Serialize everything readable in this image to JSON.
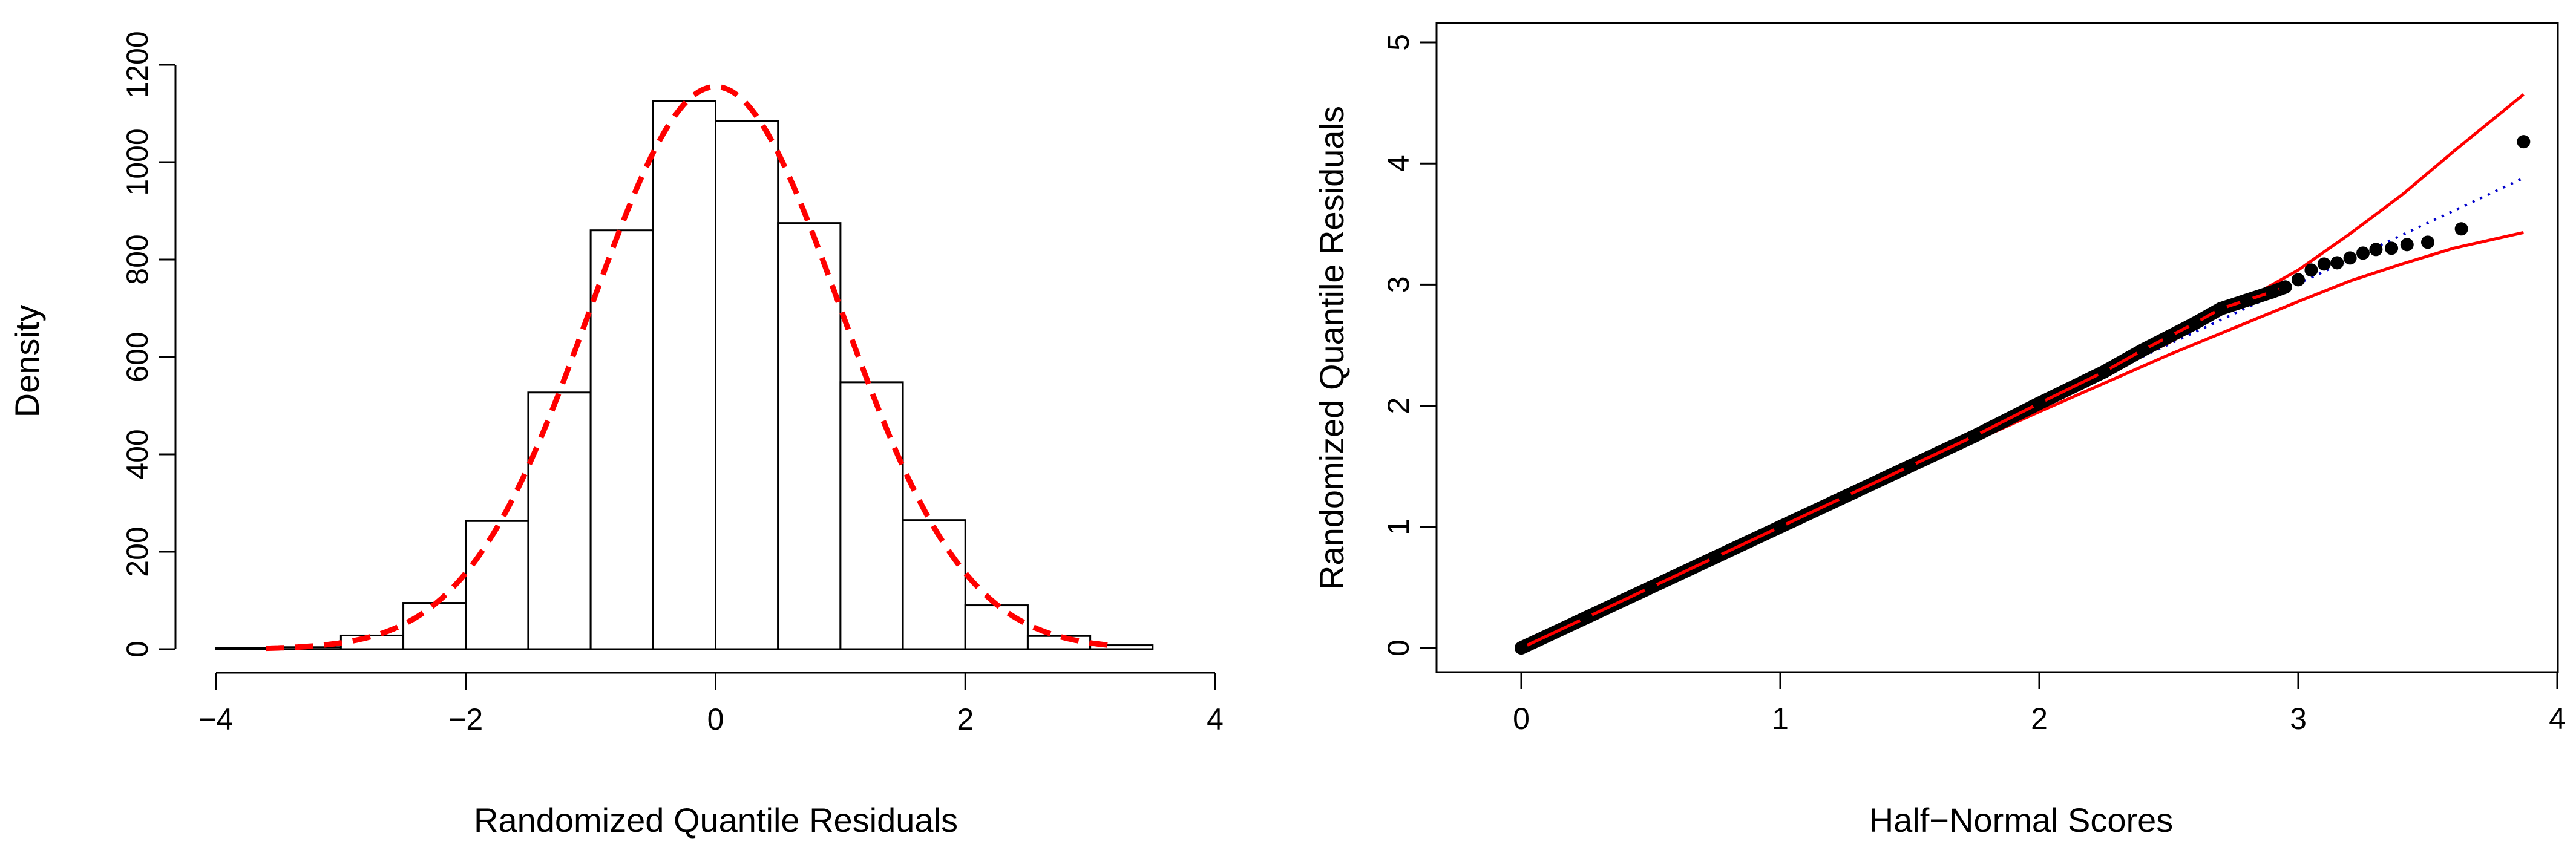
{
  "chart_data": [
    {
      "type": "bar",
      "subtype": "histogram",
      "title": "",
      "xlabel": "Randomized Quantile Residuals",
      "ylabel": "Density",
      "xlim": [
        -4,
        4
      ],
      "ylim": [
        0,
        1200
      ],
      "x_ticks": [
        -4,
        -2,
        0,
        2,
        4
      ],
      "x_tick_labels": [
        "−4",
        "−2",
        "0",
        "2",
        "4"
      ],
      "y_ticks": [
        0,
        200,
        400,
        600,
        800,
        1000,
        1200
      ],
      "y_tick_labels": [
        "0",
        "200",
        "400",
        "600",
        "800",
        "1000",
        "1200"
      ],
      "bin_edges": [
        -4,
        -3.5,
        -3,
        -2.5,
        -2,
        -1.5,
        -1,
        -0.5,
        0,
        0.5,
        1,
        1.5,
        2,
        2.5,
        3,
        3.5
      ],
      "values": [
        2,
        4,
        28,
        95,
        263,
        527,
        860,
        1125,
        1085,
        875,
        548,
        265,
        90,
        27,
        8
      ],
      "bar_fill": "#ffffff",
      "bar_stroke": "#000000",
      "overlay": {
        "name": "normal density",
        "color": "#ff0000",
        "style": "dashed",
        "mean": 0,
        "sd": 1,
        "peak": 1155,
        "x_range": [
          -3.6,
          3.2
        ]
      }
    },
    {
      "type": "scatter",
      "subtype": "half-normal plot",
      "title": "",
      "xlabel": "Half−Normal Scores",
      "ylabel": "Randomized Quantile Residuals",
      "xlim": [
        0,
        4
      ],
      "ylim": [
        0,
        5
      ],
      "x_ticks": [
        0,
        1,
        2,
        3,
        4
      ],
      "x_tick_labels": [
        "0",
        "1",
        "2",
        "3",
        "4"
      ],
      "y_ticks": [
        0,
        1,
        2,
        3,
        4,
        5
      ],
      "y_tick_labels": [
        "0",
        "1",
        "2",
        "3",
        "4",
        "5"
      ],
      "points": {
        "color": "#000000",
        "x": [
          0.0,
          0.25,
          0.5,
          0.75,
          1.0,
          1.25,
          1.5,
          1.75,
          2.0,
          2.25,
          2.4,
          2.5,
          2.6,
          2.7,
          2.8,
          2.9,
          2.95,
          3.0,
          3.05,
          3.1,
          3.15,
          3.2,
          3.25,
          3.3,
          3.36,
          3.42,
          3.5,
          3.63,
          3.87
        ],
        "y": [
          0.0,
          0.25,
          0.5,
          0.75,
          1.0,
          1.25,
          1.5,
          1.75,
          2.02,
          2.28,
          2.46,
          2.57,
          2.68,
          2.8,
          2.87,
          2.94,
          2.98,
          3.04,
          3.12,
          3.17,
          3.18,
          3.22,
          3.26,
          3.29,
          3.3,
          3.33,
          3.35,
          3.46,
          4.18
        ]
      },
      "reference_line": {
        "color": "#0000cc",
        "style": "dotted",
        "x": [
          0,
          3.87
        ],
        "y": [
          0,
          3.88
        ]
      },
      "envelope_upper": {
        "color": "#ff0000",
        "x": [
          0,
          1,
          2,
          2.5,
          3,
          3.2,
          3.4,
          3.6,
          3.87
        ],
        "y": [
          0,
          1.0,
          2.0,
          2.52,
          3.12,
          3.42,
          3.74,
          4.1,
          4.57
        ]
      },
      "envelope_lower": {
        "color": "#ff0000",
        "x": [
          0,
          1,
          2,
          2.5,
          3,
          3.2,
          3.4,
          3.6,
          3.87
        ],
        "y": [
          0,
          0.99,
          1.95,
          2.42,
          2.86,
          3.03,
          3.17,
          3.3,
          3.43
        ]
      }
    }
  ]
}
